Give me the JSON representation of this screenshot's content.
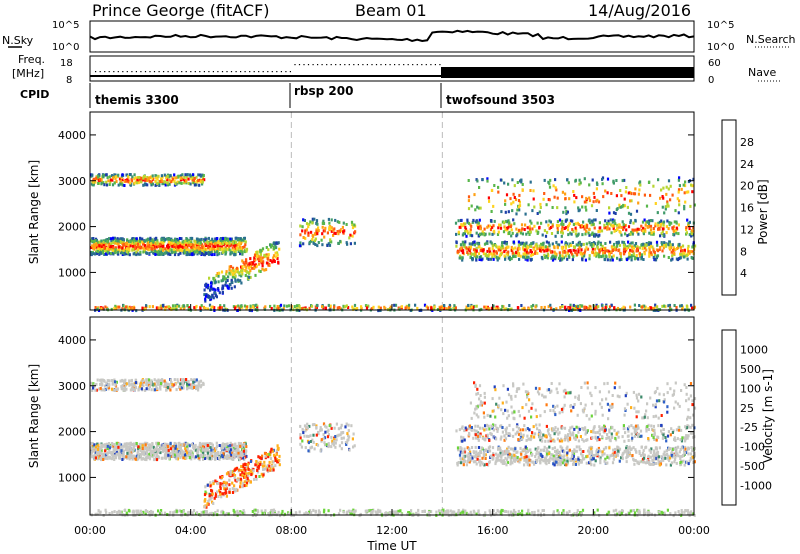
{
  "header": {
    "station": "Prince George (fitACF)",
    "beam": "Beam 01",
    "date": "14/Aug/2016"
  },
  "noise_panel": {
    "left_label": "N.Sky",
    "right_label": "N.Search",
    "ticks_left": [
      "10^5",
      "10^0"
    ],
    "ticks_right": [
      "10^5",
      "10^0"
    ]
  },
  "freq_panel": {
    "left_label_1": "Freq.",
    "left_label_2": "[MHz]",
    "right_label": "Nave",
    "ticks_left": [
      "18",
      "8"
    ],
    "ticks_right": [
      "60",
      "0"
    ]
  },
  "cpid": {
    "label": "CPID",
    "segments": [
      {
        "name": "themis 3300",
        "start_hour": 0
      },
      {
        "name": "rbsp 200",
        "start_hour": 8
      },
      {
        "name": "twofsound 3503",
        "start_hour": 14
      }
    ]
  },
  "x_axis": {
    "label": "Time UT",
    "ticks": [
      "00:00",
      "04:00",
      "08:00",
      "12:00",
      "16:00",
      "20:00",
      "00:00"
    ]
  },
  "chart_data": [
    {
      "type": "heatmap",
      "name": "power",
      "ylabel": "Slant Range [km]",
      "yticks": [
        "1000",
        "2000",
        "3000",
        "4000"
      ],
      "ylim": [
        180,
        4500
      ],
      "xlim_hours": [
        0,
        24
      ],
      "colorbar": {
        "label": "Power [dB]",
        "ticks": [
          "28",
          "24",
          "20",
          "16",
          "12",
          "8",
          "4"
        ],
        "colors": [
          "#0000ff",
          "#1c3fa8",
          "#2a6f8f",
          "#3f9a6a",
          "#58b64a",
          "#b7d631",
          "#ffd21e",
          "#ffa014",
          "#ff5a10",
          "#ff0000"
        ]
      }
    },
    {
      "type": "heatmap",
      "name": "velocity",
      "ylabel": "Slant Range [km]",
      "yticks": [
        "1000",
        "2000",
        "3000",
        "4000"
      ],
      "ylim": [
        180,
        4500
      ],
      "xlim_hours": [
        0,
        24
      ],
      "colorbar": {
        "label": "Velocity [m s-1]",
        "ticks": [
          "1000",
          "500",
          "100",
          "25",
          "-25",
          "-100",
          "-500",
          "-1000"
        ],
        "colors": [
          "#1f3fbf",
          "#2f60c8",
          "#3c8a6a",
          "#6bd43a",
          "#c8c8c4",
          "#ffb01c",
          "#ff7a10",
          "#ff2000"
        ]
      }
    }
  ]
}
